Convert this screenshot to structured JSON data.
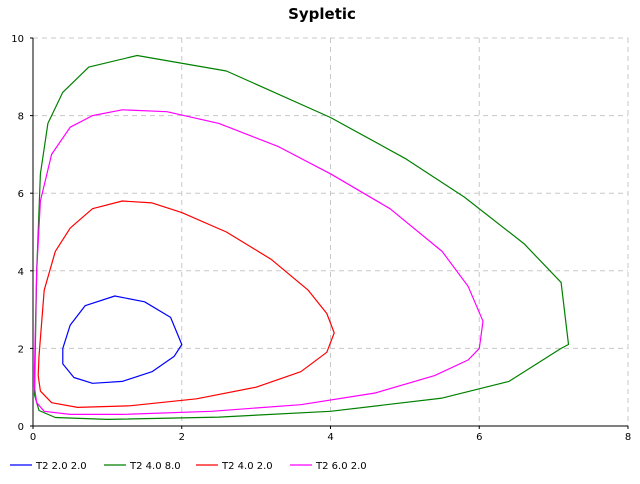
{
  "chart_data": {
    "type": "line",
    "title": "Sypletic",
    "xlabel": "",
    "ylabel": "",
    "xlim": [
      0,
      8
    ],
    "ylim": [
      0,
      10
    ],
    "x_ticks": [
      0,
      2,
      4,
      6,
      8
    ],
    "y_ticks": [
      0,
      2,
      4,
      6,
      8,
      10
    ],
    "grid": true,
    "legend_position": "bottom",
    "series": [
      {
        "name": "T2 2.0 2.0",
        "color": "#0000ff",
        "points": [
          [
            0.4,
            2.0
          ],
          [
            0.5,
            2.6
          ],
          [
            0.7,
            3.1
          ],
          [
            1.1,
            3.35
          ],
          [
            1.5,
            3.2
          ],
          [
            1.85,
            2.8
          ],
          [
            2.0,
            2.1
          ],
          [
            1.9,
            1.8
          ],
          [
            1.6,
            1.4
          ],
          [
            1.2,
            1.15
          ],
          [
            0.8,
            1.1
          ],
          [
            0.55,
            1.25
          ],
          [
            0.4,
            1.6
          ],
          [
            0.4,
            2.0
          ]
        ]
      },
      {
        "name": "T2 4.0 8.0",
        "color": "#008000",
        "points": [
          [
            0.02,
            0.8
          ],
          [
            0.05,
            4.0
          ],
          [
            0.1,
            6.5
          ],
          [
            0.2,
            7.8
          ],
          [
            0.4,
            8.6
          ],
          [
            0.75,
            9.25
          ],
          [
            1.4,
            9.55
          ],
          [
            2.6,
            9.15
          ],
          [
            4.0,
            7.95
          ],
          [
            5.0,
            6.9
          ],
          [
            5.8,
            5.9
          ],
          [
            6.6,
            4.7
          ],
          [
            7.1,
            3.7
          ],
          [
            7.2,
            2.1
          ],
          [
            7.1,
            2.0
          ],
          [
            6.4,
            1.15
          ],
          [
            5.5,
            0.72
          ],
          [
            4.0,
            0.38
          ],
          [
            2.5,
            0.23
          ],
          [
            1.0,
            0.17
          ],
          [
            0.3,
            0.22
          ],
          [
            0.08,
            0.4
          ],
          [
            0.02,
            0.8
          ]
        ]
      },
      {
        "name": "T2 4.0 2.0",
        "color": "#ff0000",
        "points": [
          [
            0.08,
            1.8
          ],
          [
            0.15,
            3.5
          ],
          [
            0.3,
            4.5
          ],
          [
            0.5,
            5.1
          ],
          [
            0.8,
            5.6
          ],
          [
            1.2,
            5.8
          ],
          [
            1.6,
            5.75
          ],
          [
            2.0,
            5.5
          ],
          [
            2.6,
            5.0
          ],
          [
            3.2,
            4.3
          ],
          [
            3.7,
            3.5
          ],
          [
            3.95,
            2.9
          ],
          [
            4.05,
            2.4
          ],
          [
            3.95,
            1.9
          ],
          [
            3.6,
            1.4
          ],
          [
            3.0,
            1.0
          ],
          [
            2.2,
            0.7
          ],
          [
            1.3,
            0.52
          ],
          [
            0.6,
            0.48
          ],
          [
            0.25,
            0.6
          ],
          [
            0.1,
            0.9
          ],
          [
            0.07,
            1.3
          ],
          [
            0.08,
            1.8
          ]
        ]
      },
      {
        "name": "T2 6.0 2.0",
        "color": "#ff00ff",
        "points": [
          [
            0.02,
            1.5
          ],
          [
            0.05,
            4.0
          ],
          [
            0.1,
            5.8
          ],
          [
            0.25,
            7.0
          ],
          [
            0.5,
            7.7
          ],
          [
            0.8,
            8.0
          ],
          [
            1.2,
            8.15
          ],
          [
            1.8,
            8.1
          ],
          [
            2.5,
            7.8
          ],
          [
            3.3,
            7.2
          ],
          [
            4.0,
            6.5
          ],
          [
            4.8,
            5.6
          ],
          [
            5.5,
            4.5
          ],
          [
            5.85,
            3.6
          ],
          [
            6.05,
            2.7
          ],
          [
            6.0,
            2.0
          ],
          [
            5.85,
            1.7
          ],
          [
            5.4,
            1.3
          ],
          [
            4.6,
            0.85
          ],
          [
            3.6,
            0.55
          ],
          [
            2.4,
            0.38
          ],
          [
            1.2,
            0.3
          ],
          [
            0.5,
            0.3
          ],
          [
            0.15,
            0.38
          ],
          [
            0.05,
            0.6
          ],
          [
            0.02,
            1.0
          ],
          [
            0.02,
            1.5
          ]
        ]
      }
    ]
  }
}
